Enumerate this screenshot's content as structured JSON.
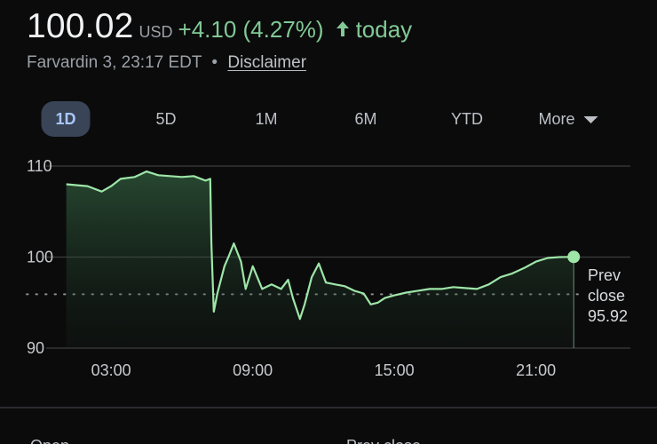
{
  "quote": {
    "price": "100.02",
    "currency": "USD",
    "change": "+4.10 (4.27%)",
    "arrow_icon": "arrow-up-icon",
    "period": "today",
    "timestamp": "Farvardin 3, 23:17 EDT",
    "separator": "•",
    "disclaimer": "Disclaimer"
  },
  "tabs": [
    {
      "label": "1D",
      "active": true
    },
    {
      "label": "5D",
      "active": false
    },
    {
      "label": "1M",
      "active": false
    },
    {
      "label": "6M",
      "active": false
    },
    {
      "label": "YTD",
      "active": false
    },
    {
      "label": "More",
      "active": false,
      "icon": "dropdown-caret-icon"
    }
  ],
  "colors": {
    "positive": "#81c995",
    "line": "#9ee6a8",
    "gridline": "#3c3c3c",
    "active_tab_bg": "#394457",
    "active_tab_text": "#a8c7fa"
  },
  "chart_data": {
    "type": "area",
    "x_ticks": [
      "03:00",
      "09:00",
      "15:00",
      "21:00"
    ],
    "y_ticks": [
      110,
      100,
      90
    ],
    "ylim": [
      90,
      110
    ],
    "xlim": [
      1,
      25
    ],
    "grid": true,
    "reference_line": {
      "label": "Prev close",
      "label_lines": [
        "Prev",
        "close"
      ],
      "value": 95.92
    },
    "series": [
      {
        "x": [
          1.1,
          2.0,
          2.6,
          3.0,
          3.4,
          4.0,
          4.5,
          5.0,
          5.5,
          6.0,
          6.5,
          7.0,
          7.2,
          7.25,
          7.35,
          7.5,
          7.8,
          8.0,
          8.2,
          8.5,
          8.7,
          9.0,
          9.4,
          9.8,
          10.2,
          10.5,
          10.7,
          11.0,
          11.2,
          11.5,
          11.8,
          12.1,
          12.5,
          12.9,
          13.3,
          13.7,
          14.0,
          14.3,
          14.6,
          15.0,
          15.5,
          16.0,
          16.5,
          17.0,
          17.5,
          18.0,
          18.5,
          19.0,
          19.5,
          20.0,
          20.5,
          21.0,
          21.5,
          22.0,
          22.6
        ],
        "y": [
          108.0,
          107.8,
          107.2,
          107.8,
          108.6,
          108.8,
          109.4,
          109.0,
          108.9,
          108.8,
          108.9,
          108.4,
          108.6,
          101.5,
          94.0,
          96.0,
          99.0,
          100.2,
          101.5,
          99.5,
          96.5,
          99.0,
          96.5,
          97.0,
          96.5,
          97.5,
          95.5,
          93.2,
          94.8,
          97.8,
          99.3,
          97.2,
          97.0,
          96.8,
          96.3,
          96.0,
          94.8,
          95.0,
          95.5,
          95.8,
          96.1,
          96.3,
          96.5,
          96.5,
          96.7,
          96.6,
          96.5,
          97.0,
          97.8,
          98.2,
          98.8,
          99.5,
          99.9,
          100.0,
          100.02
        ]
      }
    ]
  },
  "stats_peek": [
    {
      "label": "Open"
    },
    {
      "label": "Prev close"
    }
  ]
}
